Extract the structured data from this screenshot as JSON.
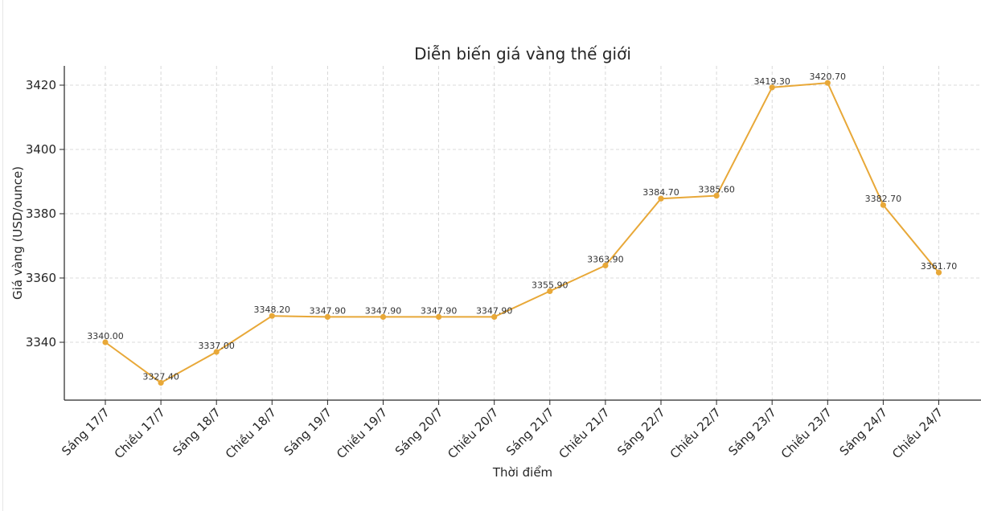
{
  "chart_data": {
    "type": "line",
    "title": "Diễn biến giá vàng thế giới",
    "xlabel": "Thời điểm",
    "ylabel": "Giá vàng (USD/ounce)",
    "categories": [
      "Sáng 17/7",
      "Chiều 17/7",
      "Sáng 18/7",
      "Chiều 18/7",
      "Sáng 19/7",
      "Chiều 19/7",
      "Sáng 20/7",
      "Chiều 20/7",
      "Sáng 21/7",
      "Chiều 21/7",
      "Sáng 22/7",
      "Chiều 22/7",
      "Sáng 23/7",
      "Chiều 23/7",
      "Sáng 24/7",
      "Chiều 24/7"
    ],
    "values": [
      3340.0,
      3327.4,
      3337.0,
      3348.2,
      3347.9,
      3347.9,
      3347.9,
      3347.9,
      3355.9,
      3363.9,
      3384.7,
      3385.6,
      3419.3,
      3420.7,
      3382.7,
      3361.7
    ],
    "data_labels": [
      "3340.00",
      "3327.40",
      "3337.00",
      "3348.20",
      "3347.90",
      "3347.90",
      "3347.90",
      "3347.90",
      "3355.90",
      "3363.90",
      "3384.70",
      "3385.60",
      "3419.30",
      "3420.70",
      "3382.70",
      "3361.70"
    ],
    "yticks": [
      3340,
      3360,
      3380,
      3400,
      3420
    ],
    "ylim": [
      3322,
      3426
    ],
    "grid": true,
    "line_color": "#e8a838",
    "marker": "circle"
  }
}
